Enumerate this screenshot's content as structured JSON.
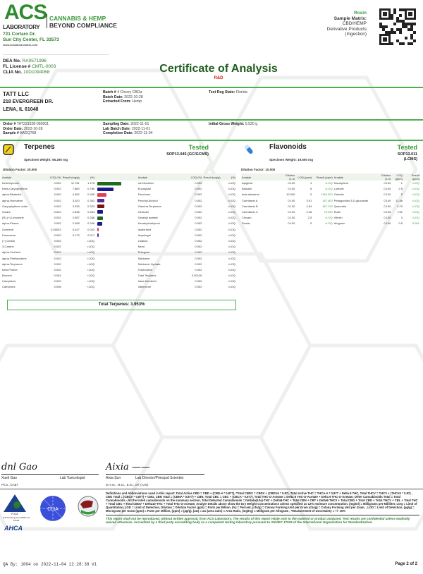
{
  "lab": {
    "name": "ACS",
    "sub": "LABORATORY",
    "tag1": "CANNABIS & HEMP",
    "tag2": "BEYOND COMPLIANCE",
    "addr1": "721 Cortaro Dr.",
    "addr2": "Sun City Center, FL 33573",
    "web": "www.acslabcannabis.com",
    "dea_label": "DEA No.",
    "dea": "RA0571996",
    "fl_label": "FL License #",
    "fl": "CMTL-0003",
    "clia_label": "CLIA No.",
    "clia": "10D1094068"
  },
  "title": "Certificate of Analysis",
  "subtitle": "R&D",
  "sample": {
    "name": "Rosin",
    "matrix_label": "Sample Matrix:",
    "matrix1": "CBD/HEMP",
    "matrix2": "Derivative Products",
    "matrix3": "(Ingestion)"
  },
  "client": {
    "name": "TATT LLC",
    "street": "218 EVERGREEN DR.",
    "city": "LENA, IL 61048"
  },
  "batch": {
    "batch_label": "Batch #",
    "batch": "4 Cherry CBDa",
    "batch_date_label": "Batch Date:",
    "batch_date": "2022-10-28",
    "extracted_label": "Extracted From:",
    "extracted": "Hemp",
    "state_label": "Test Reg State:",
    "state": "Florida"
  },
  "order": {
    "order_label": "Order #",
    "order": "TAT221028-050001",
    "order_date_label": "Order Date:",
    "order_date": "2022-10-28",
    "sample_label": "Sample #",
    "sample": "AADQ768",
    "sampling_label": "Sampling Date:",
    "sampling": "2022-11-01",
    "lab_batch_label": "Lab Batch Date:",
    "lab_batch": "2022-11-01",
    "completion_label": "Completion Date:",
    "completion": "2022-11-04",
    "gross_label": "Initial Gross Weight:",
    "gross": "5.520 g"
  },
  "terpenes": {
    "title": "Terpenes",
    "status": "Tested",
    "sop": "SOP13.045 (GC/GCMS)",
    "specimen": "Specimen Weight: 55.260 mg",
    "dilution": "Dilution Factor: 20.000",
    "headers": [
      "Analyte",
      "LOQ (%)",
      "Result (mg/g)",
      "(%)"
    ],
    "left": [
      [
        "beta-Myrcene",
        "0.002",
        "11.761",
        "1.176",
        "#1e6b1e"
      ],
      [
        "trans-Caryophyllene",
        "0.002",
        "7.860",
        "0.786",
        "#1a1a8c"
      ],
      [
        "alpha-Bisabolol",
        "0.002",
        "4.362",
        "0.436",
        "#e0405a"
      ],
      [
        "alpha-Humulene",
        "0.002",
        "3.520",
        "0.352",
        "#5b2a8f"
      ],
      [
        "Caryophyllene oxide",
        "0.002",
        "3.335",
        "0.333",
        "#7a1515"
      ],
      [
        "Guaiol",
        "0.002",
        "2.836",
        "0.284",
        "#1a1a8c"
      ],
      [
        "(R)-(+)-Limonene",
        "0.002",
        "2.657",
        "0.266",
        "#1e6b1e"
      ],
      [
        "alpha-Pinene",
        "0.002",
        "2.458",
        "0.246",
        "#1a1a8c"
      ],
      [
        "Ocimene",
        "0.00033",
        "0.427",
        "0.043",
        "#e0405a"
      ],
      [
        "Farnesene",
        "0.002",
        "0.173",
        "0.017",
        "#5b2a8f"
      ],
      [
        "(+)-Cedrol",
        "0.002",
        "",
        "<LOQ",
        ""
      ],
      [
        "3-Carene",
        "0.002",
        "",
        "<LOQ",
        ""
      ],
      [
        "alpha-Cedrene",
        "0.002",
        "",
        "<LOQ",
        ""
      ],
      [
        "alpha-Phellandrene",
        "0.002",
        "",
        "<LOQ",
        ""
      ],
      [
        "alpha-Terpinene",
        "0.002",
        "",
        "<LOQ",
        ""
      ],
      [
        "beta-Pinene",
        "0.002",
        "",
        "<LOQ",
        ""
      ],
      [
        "Borneol",
        "0.004",
        "",
        "<LOQ",
        ""
      ],
      [
        "Camphene",
        "0.002",
        "",
        "<LOQ",
        ""
      ],
      [
        "Camphors",
        "0.006",
        "",
        "<LOQ",
        ""
      ]
    ],
    "right": [
      [
        "cis-Nerolidol",
        "0.002",
        "",
        "<LOQ"
      ],
      [
        "Eucalyptol",
        "0.002",
        "",
        "<LOQ"
      ],
      [
        "Fenchone",
        "0.002",
        "",
        "<LOQ"
      ],
      [
        "Fenchyl Alcohol",
        "0.002",
        "",
        "<LOQ"
      ],
      [
        "Gamma-Terpinene",
        "0.002",
        "",
        "<LOQ"
      ],
      [
        "Geraniol",
        "0.002",
        "",
        "<LOQ"
      ],
      [
        "Geranyl acetate",
        "0.002",
        "",
        "<LOQ"
      ],
      [
        "Hexahydrothymol",
        "0.002",
        "",
        "<LOQ"
      ],
      [
        "Isoborneol",
        "0.002",
        "",
        "<LOQ"
      ],
      [
        "Isopulegol",
        "0.002",
        "",
        "<LOQ"
      ],
      [
        "Linalool",
        "0.002",
        "",
        "<LOQ"
      ],
      [
        "Nerol",
        "0.002",
        "",
        "<LOQ"
      ],
      [
        "Pulegone",
        "0.002",
        "",
        "<LOQ"
      ],
      [
        "Sabinene",
        "0.002",
        "",
        "<LOQ"
      ],
      [
        "Sabinene Hydrate",
        "0.002",
        "",
        "<LOQ"
      ],
      [
        "Terpinolene",
        "0.002",
        "",
        "<LOQ"
      ],
      [
        "Total Terpineol",
        "0.00126",
        "",
        "<LOQ"
      ],
      [
        "trans-Nerolidol",
        "0.002",
        "",
        "<LOQ"
      ],
      [
        "Valencene",
        "0.002",
        "",
        "<LOQ"
      ]
    ],
    "total": "Total Terpenes: 3.953%"
  },
  "flavonoids": {
    "title": "Flavonoids",
    "status": "Tested",
    "sop1": "SOP13.011",
    "sop2": "(LCMS)",
    "specimen": "Specimen Weight: 19.500 mg",
    "dilution": "Dilution Factor: 10.000",
    "headers": [
      "Analyte",
      "Dilution (1:n)",
      "LOQ (ppm)",
      "Result (ppm)"
    ],
    "left": [
      [
        "Apigenin",
        "0.100",
        "4",
        "<LOQ"
      ],
      [
        "Baicalin",
        "0.100",
        "8",
        "<LOQ"
      ],
      [
        "beta sitosterol",
        "10.000",
        "5",
        "1184.000"
      ],
      [
        "Cannflavin A",
        "0.100",
        "3.91",
        "167.400"
      ],
      [
        "Cannflavin B",
        "0.100",
        "4.84",
        "187.700"
      ],
      [
        "Cannflavin C",
        "0.100",
        "2.36",
        "73.490"
      ],
      [
        "Chrysin",
        "0.100",
        "2.5",
        "<LOQ"
      ],
      [
        "Fisetin",
        "0.100",
        "5",
        "<LOQ"
      ]
    ],
    "right": [
      [
        "Kaempferol",
        "0.100",
        "1",
        "<LOQ"
      ],
      [
        "Luteolin",
        "0.100",
        "2.5",
        "<LOQ"
      ],
      [
        "Orientin",
        "0.100",
        "5",
        "<LOQ"
      ],
      [
        "Pelargonidin-3-O-glucoside",
        "0.100",
        "11.56",
        "<LOQ"
      ],
      [
        "Quercetin",
        "0.100",
        "3.23",
        "<LOQ"
      ],
      [
        "Rutin",
        "0.100",
        "7.81",
        "<LOQ"
      ],
      [
        "Vitexin",
        "0.100",
        "4",
        "<LOQ"
      ],
      [
        "Wogonin",
        "0.100",
        "0.5",
        "5.261"
      ]
    ]
  },
  "signatures": {
    "name1": "Xueli Gao",
    "role1": "Lab Toxicologist",
    "cred1": "Ph.D., DABT",
    "name2": "Aixia Sun",
    "role2": "Lab Director/Principal Scientist",
    "cred2": "D.H.Sc., M.Sc., B.Sc., MT (AAB)"
  },
  "logos": {
    "pjla": "PJLA Testing Accreditation # 97164",
    "ahca": "AHCA",
    "clia": "CLIA"
  },
  "definitions": "Definitions and Abbreviations used in this report: Total Active CBD = CBD + (CBD-A * 0.877), *Total CBDV = CBDV + (CBDVA * 0.87), Total Active THC = THCA-A * 0.877 + Delta 9 THC, Total THCV = THCV + (THCVA * 0.87) , CBG Total = (CBGA * 0.877) + CBG, CBN Total = (CBNA * 0.877) + CBN, Total CBC = CBC + (CBCA * 0.877), Total THC-O-Acetate = Delta 8 THC-O-Acetate + Delta 9 THC-O-Acetate, Other Cannabinoids Total = Total Cannabinoids - All the listed cannabinoids on the summary section, Total Detected Cannabinoids = Delta6a(10a)-THC + Delta8-THC + Total CBN + CBT + Delta8-THCV + Total CBG + Total CBD + Total THCV + CBL + Total THC + Total CBC + Total CBDV + Delta10-THC + Total THC-O-Acetate, Analyte Details above show the Dry Weight Concentrations unless specified as 12% moisture concentration. (mg/ml) = Milligrams per Milliliter, LOQ = Limit of Quantitation, LOD = Limit of Detection, Dilution = Dilution Factor (ppb) = Parts per Billion, (%) = Percent, (cfu/g) = Colony Forming Unit per Gram (cfu/g) = Colony Forming Unit per Gram, , LOD = Limit of Detection, (µg/g) = Microgram per Gram (ppm) = Parts per Million, (ppm) = (µg/g), (aw) = aw (area ratio) = Area Ratio, (mg/Kg) = Milligram per Kilogram , *Measurement of Uncertainty = +/- 10%",
  "disclaimer": "This report shall not be reproduced, without written approval, from ACS Laboratory. The results of this report relate only to the material or product analyzed. Test results are confidential unless explicitly waived otherwise. Accredited by a third party accrediting body as a competent testing laboratory pursuant to ISO/IEC 17025 of the International Organization for Standardization.",
  "footer": {
    "qa": "QA By: 1004 on 2022-11-04 12:28:38 V1",
    "page": "Page 2 of 2"
  },
  "colors": {
    "brand_green": "#2e8b2e",
    "accent_red": "#d22222"
  }
}
